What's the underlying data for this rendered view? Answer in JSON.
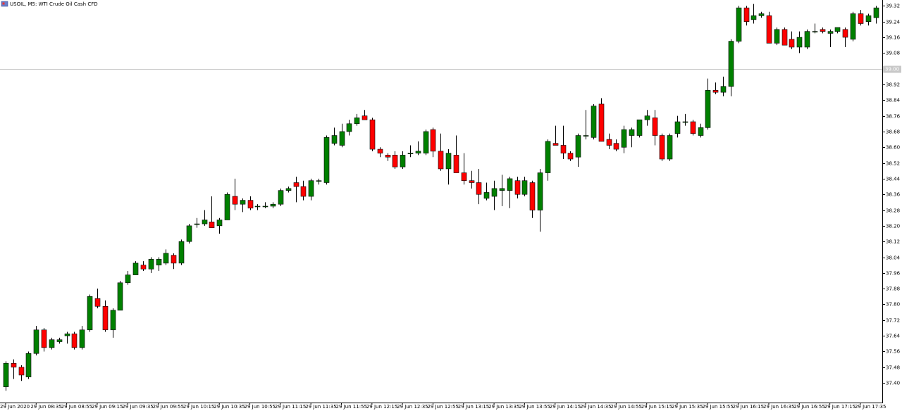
{
  "chart_data": {
    "type": "candlestick",
    "title": "USOIL, M5:  WTI Crude Oil Cash CFD",
    "up_color": "#008000",
    "down_color": "#ff0000",
    "wick_color": "#000000",
    "ylim": [
      37.3,
      39.35
    ],
    "yticks": [
      {
        "value": 37.4,
        "label": "37.40"
      },
      37.48,
      37.56,
      37.64,
      37.72,
      {
        "value": 37.8,
        "label": "37.80"
      },
      37.88,
      37.96,
      38.04,
      38.12,
      {
        "value": 38.2,
        "label": "38.20"
      },
      38.28,
      38.36,
      38.44,
      38.52,
      {
        "value": 38.6,
        "label": "38.60"
      },
      38.68,
      38.76,
      38.84,
      38.92,
      39.08,
      39.16,
      39.24,
      39.32
    ],
    "price_line": {
      "value": 39.0,
      "label": "39.00"
    },
    "x_labels": [
      "29 Jun 2020",
      "29 Jun 08:35",
      "29 Jun 08:55",
      "29 Jun 09:15",
      "29 Jun 09:35",
      "29 Jun 09:55",
      "29 Jun 10:15",
      "29 Jun 10:35",
      "29 Jun 10:55",
      "29 Jun 11:15",
      "29 Jun 11:35",
      "29 Jun 11:55",
      "29 Jun 12:15",
      "29 Jun 12:35",
      "29 Jun 12:55",
      "29 Jun 13:15",
      "29 Jun 13:35",
      "29 Jun 13:55",
      "29 Jun 14:15",
      "29 Jun 14:35",
      "29 Jun 14:55",
      "29 Jun 15:15",
      "29 Jun 15:35",
      "29 Jun 15:55",
      "29 Jun 16:15",
      "29 Jun 16:35",
      "29 Jun 16:55",
      "29 Jun 17:15",
      "29 Jun 17:35"
    ],
    "open": [
      37.38,
      37.5,
      37.48,
      37.43,
      37.55,
      37.67,
      37.58,
      37.61,
      37.64,
      37.65,
      37.58,
      37.67,
      37.83,
      37.79,
      37.67,
      37.77,
      37.91,
      37.95,
      38.0,
      37.98,
      38.0,
      38.01,
      38.05,
      38.01,
      38.12,
      38.21,
      38.21,
      38.22,
      38.2,
      38.23,
      38.35,
      38.31,
      38.33,
      38.3,
      38.3,
      38.3,
      38.31,
      38.38,
      38.42,
      38.4,
      38.35,
      38.43,
      38.42,
      38.62,
      38.61,
      38.68,
      38.72,
      38.76,
      38.74,
      38.59,
      38.56,
      38.56,
      38.5,
      38.57,
      38.57,
      38.57,
      38.69,
      38.58,
      38.49,
      38.56,
      38.47,
      38.43,
      38.42,
      38.34,
      38.35,
      38.38,
      38.38,
      38.43,
      38.36,
      38.42,
      38.28,
      38.47,
      38.62,
      38.61,
      38.57,
      38.55,
      38.66,
      38.65,
      38.82,
      38.64,
      38.62,
      38.6,
      38.66,
      38.66,
      38.74,
      38.75,
      38.66,
      38.54,
      38.67,
      38.73,
      38.73,
      38.66,
      38.7,
      38.89,
      38.88,
      38.91,
      39.14,
      39.31,
      39.25,
      39.27,
      39.27,
      39.13,
      39.2,
      39.15,
      39.11,
      39.11,
      39.19,
      39.2,
      39.18,
      39.19,
      39.2,
      39.15,
      39.28,
      39.24,
      39.26
    ],
    "high": [
      37.51,
      37.52,
      37.49,
      37.56,
      37.69,
      37.68,
      37.63,
      37.63,
      37.66,
      37.66,
      37.69,
      37.85,
      37.88,
      37.82,
      37.78,
      37.92,
      37.97,
      38.02,
      38.02,
      38.04,
      38.04,
      38.08,
      38.06,
      38.13,
      38.21,
      38.24,
      38.28,
      38.35,
      38.24,
      38.37,
      38.44,
      38.34,
      38.35,
      38.31,
      38.32,
      38.32,
      38.39,
      38.4,
      38.45,
      38.43,
      38.44,
      38.44,
      38.66,
      38.7,
      38.72,
      38.74,
      38.77,
      38.79,
      38.75,
      38.6,
      38.57,
      38.58,
      38.58,
      38.61,
      38.63,
      38.69,
      38.7,
      38.67,
      38.59,
      38.66,
      38.57,
      38.48,
      38.49,
      38.42,
      38.43,
      38.46,
      38.45,
      38.45,
      38.45,
      38.43,
      38.49,
      38.64,
      38.71,
      38.71,
      38.58,
      38.67,
      38.79,
      38.82,
      38.85,
      38.67,
      38.64,
      38.71,
      38.7,
      38.74,
      38.79,
      38.79,
      38.67,
      38.67,
      38.76,
      38.77,
      38.74,
      38.72,
      38.95,
      38.93,
      38.96,
      39.15,
      39.32,
      39.32,
      39.33,
      39.29,
      39.29,
      39.21,
      39.21,
      39.19,
      39.19,
      39.2,
      39.23,
      39.21,
      39.2,
      39.21,
      39.21,
      39.29,
      39.3,
      39.28,
      39.32
    ],
    "low": [
      37.36,
      37.42,
      37.41,
      37.42,
      37.54,
      37.56,
      37.57,
      37.6,
      37.6,
      37.57,
      37.57,
      37.66,
      37.78,
      37.66,
      37.63,
      37.77,
      37.9,
      37.95,
      37.97,
      37.96,
      37.97,
      38.0,
      37.98,
      38.0,
      38.11,
      38.19,
      38.2,
      38.19,
      38.16,
      38.23,
      38.28,
      38.27,
      38.28,
      38.28,
      38.29,
      38.29,
      38.3,
      38.37,
      38.32,
      38.33,
      38.33,
      38.41,
      38.41,
      38.61,
      38.6,
      38.66,
      38.71,
      38.74,
      38.58,
      38.55,
      38.53,
      38.49,
      38.49,
      38.55,
      38.56,
      38.56,
      38.55,
      38.48,
      38.41,
      38.47,
      38.41,
      38.39,
      38.31,
      38.33,
      38.28,
      38.3,
      38.29,
      38.34,
      38.35,
      38.24,
      38.17,
      38.43,
      38.61,
      38.54,
      38.53,
      38.5,
      38.64,
      38.64,
      38.63,
      38.59,
      38.58,
      38.57,
      38.6,
      38.65,
      38.71,
      38.61,
      38.53,
      38.53,
      38.65,
      38.71,
      38.66,
      38.65,
      38.69,
      38.87,
      38.86,
      38.86,
      39.13,
      39.22,
      39.23,
      39.26,
      39.13,
      39.12,
      39.12,
      39.1,
      39.08,
      39.1,
      39.18,
      39.18,
      39.11,
      39.18,
      39.11,
      39.14,
      39.22,
      39.22,
      39.23
    ],
    "close": [
      37.5,
      37.48,
      37.44,
      37.55,
      37.67,
      37.58,
      37.62,
      37.62,
      37.65,
      37.58,
      37.67,
      37.84,
      37.79,
      37.67,
      37.77,
      37.91,
      37.95,
      38.01,
      37.98,
      38.03,
      38.03,
      38.06,
      38.01,
      38.12,
      38.2,
      38.21,
      38.23,
      38.19,
      38.23,
      38.36,
      38.31,
      38.33,
      38.29,
      38.3,
      38.3,
      38.31,
      38.38,
      38.39,
      38.4,
      38.35,
      38.43,
      38.43,
      38.65,
      38.66,
      38.68,
      38.72,
      38.75,
      38.74,
      38.59,
      38.57,
      38.55,
      38.5,
      38.56,
      38.57,
      38.58,
      38.68,
      38.58,
      38.49,
      38.57,
      38.47,
      38.43,
      38.42,
      38.36,
      38.37,
      38.39,
      38.39,
      38.44,
      38.36,
      38.43,
      38.28,
      38.47,
      38.63,
      38.61,
      38.57,
      38.54,
      38.66,
      38.66,
      38.81,
      38.63,
      38.61,
      38.59,
      38.69,
      38.69,
      38.74,
      38.76,
      38.66,
      38.54,
      38.66,
      38.73,
      38.73,
      38.67,
      38.7,
      38.89,
      38.88,
      38.91,
      39.14,
      39.31,
      39.24,
      39.27,
      39.28,
      39.13,
      39.2,
      39.12,
      39.11,
      39.16,
      39.19,
      39.19,
      39.19,
      39.19,
      39.21,
      39.16,
      39.28,
      39.23,
      39.27,
      39.31
    ]
  }
}
